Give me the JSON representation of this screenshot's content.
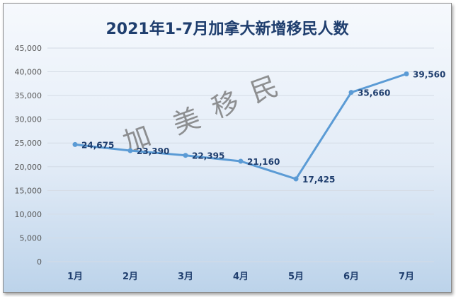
{
  "chart_data": {
    "type": "line",
    "title": "2021年1-7月加拿大新增移民人数",
    "categories": [
      "1月",
      "2月",
      "3月",
      "4月",
      "5月",
      "6月",
      "7月"
    ],
    "values": [
      24675,
      23390,
      22395,
      21160,
      17425,
      35660,
      39560
    ],
    "value_labels": [
      "24,675",
      "23,390",
      "22,395",
      "21,160",
      "17,425",
      "35,660",
      "39,560"
    ],
    "yticks": [
      "0",
      "5,000",
      "10,000",
      "15,000",
      "20,000",
      "25,000",
      "30,000",
      "35,000",
      "40,000",
      "45,000"
    ],
    "ylim": [
      0,
      45000
    ],
    "grid": true,
    "line_color": "#5b9bd5"
  },
  "watermark": [
    "加",
    "美",
    "移",
    "民"
  ]
}
